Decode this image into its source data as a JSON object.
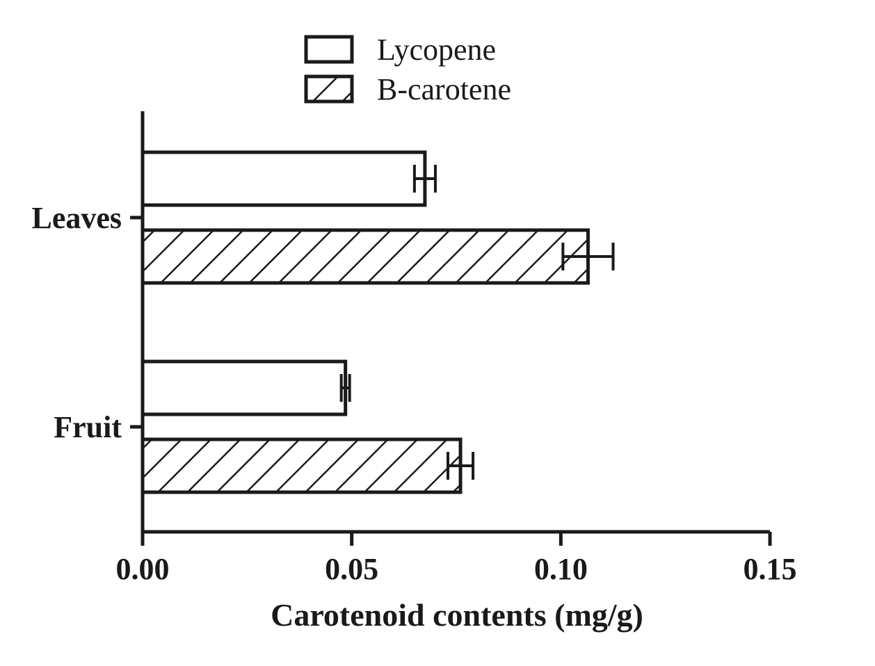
{
  "chart_data": {
    "type": "bar",
    "orientation": "horizontal",
    "categories": [
      "Leaves",
      "Fruit"
    ],
    "series": [
      {
        "name": "Lycopene",
        "values": [
          0.0675,
          0.0485
        ],
        "errors": [
          0.0025,
          0.001
        ],
        "fill": "none",
        "color": "#1a1a1a"
      },
      {
        "name": "B-carotene",
        "values": [
          0.1065,
          0.076
        ],
        "errors": [
          0.006,
          0.003
        ],
        "fill": "hatch",
        "color": "#1a1a1a"
      }
    ],
    "xlabel": "Carotenoid contents (mg/g)",
    "ylabel": "",
    "title": "",
    "xlim": [
      0,
      0.15
    ],
    "xticks": [
      "0.00",
      "0.05",
      "0.10",
      "0.15"
    ],
    "grid": false,
    "legend": "top-center"
  }
}
